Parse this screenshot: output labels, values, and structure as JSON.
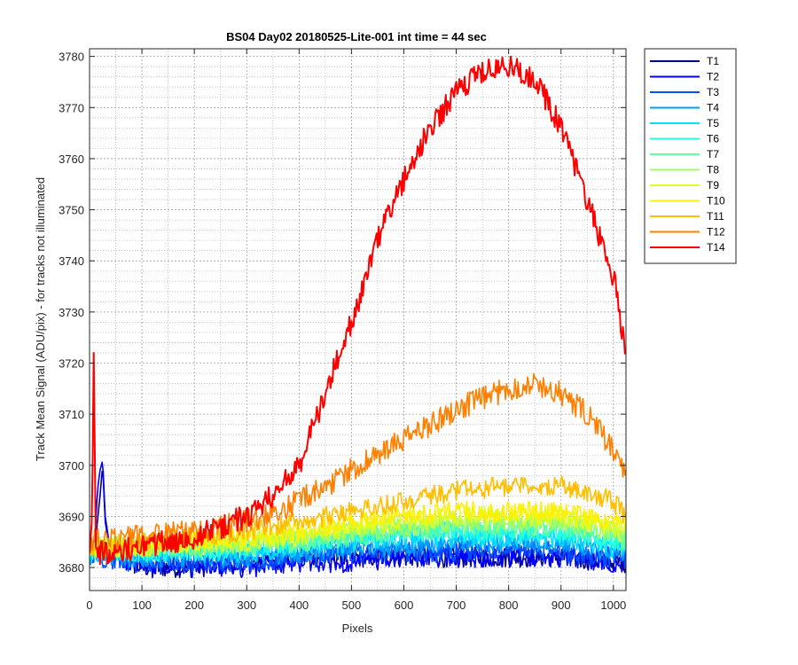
{
  "chart_data": {
    "type": "line",
    "title": "BS04 Day02 20180525-Lite-001 int time = 44 sec",
    "xlabel": "Pixels",
    "ylabel": "Track Mean Signal (ADU/pix) - for tracks not illuminated",
    "xlim": [
      0,
      1024
    ],
    "ylim": [
      3675.5,
      3781.5
    ],
    "xticks": [
      0,
      100,
      200,
      300,
      400,
      500,
      600,
      700,
      800,
      900,
      1000
    ],
    "yticks": [
      3680,
      3690,
      3700,
      3710,
      3720,
      3730,
      3740,
      3750,
      3760,
      3770,
      3780
    ],
    "grid": "major and minor (dotted)",
    "legend_position": "outside-right",
    "series": [
      {
        "name": "T1",
        "color": "#00008f",
        "x": [
          0,
          10,
          20,
          25,
          30,
          40,
          100,
          200,
          300,
          400,
          500,
          600,
          700,
          800,
          900,
          1000,
          1024
        ],
        "y": [
          3683,
          3684,
          3694,
          3700,
          3689,
          3682,
          3680,
          3680,
          3681,
          3682,
          3682,
          3682,
          3682,
          3682,
          3682,
          3681,
          3681
        ]
      },
      {
        "name": "T2",
        "color": "#0000ff",
        "x": [
          0,
          10,
          15,
          20,
          25,
          30,
          40,
          100,
          200,
          300,
          400,
          500,
          600,
          700,
          800,
          900,
          1000,
          1024
        ],
        "y": [
          3683,
          3685,
          3695,
          3699,
          3701,
          3690,
          3683,
          3680,
          3680,
          3680,
          3681,
          3681,
          3682,
          3682,
          3682,
          3682,
          3681,
          3681
        ]
      },
      {
        "name": "T3",
        "color": "#0050ff",
        "x": [
          0,
          100,
          200,
          300,
          400,
          500,
          600,
          700,
          800,
          900,
          1000,
          1024
        ],
        "y": [
          3682,
          3681,
          3681,
          3681,
          3682,
          3683,
          3683,
          3683,
          3684,
          3683,
          3682,
          3682
        ]
      },
      {
        "name": "T4",
        "color": "#009fff",
        "x": [
          0,
          100,
          200,
          300,
          400,
          500,
          600,
          700,
          800,
          900,
          1000,
          1024
        ],
        "y": [
          3682,
          3682,
          3682,
          3682,
          3683,
          3684,
          3684,
          3685,
          3685,
          3685,
          3683,
          3683
        ]
      },
      {
        "name": "T5",
        "color": "#00dfff",
        "x": [
          0,
          100,
          200,
          300,
          400,
          500,
          600,
          700,
          800,
          900,
          1000,
          1024
        ],
        "y": [
          3683,
          3683,
          3683,
          3683,
          3684,
          3685,
          3686,
          3686,
          3686,
          3686,
          3684,
          3684
        ]
      },
      {
        "name": "T6",
        "color": "#20ffdf",
        "x": [
          0,
          100,
          200,
          300,
          400,
          500,
          600,
          700,
          800,
          900,
          1000,
          1024
        ],
        "y": [
          3683,
          3683,
          3683,
          3684,
          3685,
          3686,
          3687,
          3687,
          3687,
          3687,
          3685,
          3685
        ]
      },
      {
        "name": "T7",
        "color": "#60ff9f",
        "x": [
          0,
          100,
          200,
          300,
          400,
          500,
          600,
          700,
          800,
          900,
          1000,
          1024
        ],
        "y": [
          3684,
          3684,
          3684,
          3684,
          3685,
          3686,
          3687,
          3688,
          3688,
          3688,
          3686,
          3685
        ]
      },
      {
        "name": "T8",
        "color": "#9fff60",
        "x": [
          0,
          100,
          200,
          300,
          400,
          500,
          600,
          700,
          800,
          900,
          1000,
          1024
        ],
        "y": [
          3684,
          3684,
          3684,
          3685,
          3686,
          3687,
          3688,
          3689,
          3689,
          3689,
          3687,
          3686
        ]
      },
      {
        "name": "T9",
        "color": "#dfff20",
        "x": [
          0,
          100,
          200,
          300,
          400,
          500,
          600,
          700,
          800,
          900,
          1000,
          1024
        ],
        "y": [
          3684,
          3684,
          3685,
          3685,
          3686,
          3688,
          3689,
          3690,
          3690,
          3690,
          3688,
          3687
        ]
      },
      {
        "name": "T10",
        "color": "#ffef00",
        "x": [
          0,
          100,
          200,
          300,
          400,
          500,
          600,
          700,
          800,
          900,
          1000,
          1024
        ],
        "y": [
          3684,
          3684,
          3685,
          3686,
          3687,
          3689,
          3690,
          3691,
          3691,
          3691,
          3689,
          3688
        ]
      },
      {
        "name": "T11",
        "color": "#ffbf00",
        "x": [
          0,
          100,
          200,
          300,
          400,
          500,
          600,
          700,
          800,
          900,
          1000,
          1024
        ],
        "y": [
          3684,
          3685,
          3686,
          3687,
          3689,
          3691,
          3693,
          3695,
          3696,
          3696,
          3693,
          3690
        ]
      },
      {
        "name": "T12",
        "color": "#ff8000",
        "x": [
          0,
          100,
          200,
          300,
          400,
          450,
          500,
          550,
          600,
          650,
          700,
          750,
          800,
          850,
          900,
          950,
          1000,
          1024
        ],
        "y": [
          3685,
          3686,
          3687,
          3689,
          3693,
          3696,
          3699,
          3702,
          3705,
          3708,
          3711,
          3713,
          3715,
          3716,
          3714,
          3710,
          3703,
          3697
        ]
      },
      {
        "name": "T14",
        "color": "#ff0000",
        "x": [
          0,
          5,
          8,
          12,
          20,
          50,
          100,
          200,
          250,
          300,
          350,
          400,
          450,
          500,
          550,
          600,
          650,
          700,
          750,
          800,
          850,
          900,
          950,
          1000,
          1024
        ],
        "y": [
          3683,
          3690,
          3722,
          3684,
          3683,
          3683,
          3684,
          3686,
          3688,
          3690,
          3694,
          3700,
          3714,
          3728,
          3744,
          3756,
          3766,
          3773,
          3777,
          3778,
          3776,
          3766,
          3752,
          3737,
          3722
        ]
      }
    ]
  }
}
